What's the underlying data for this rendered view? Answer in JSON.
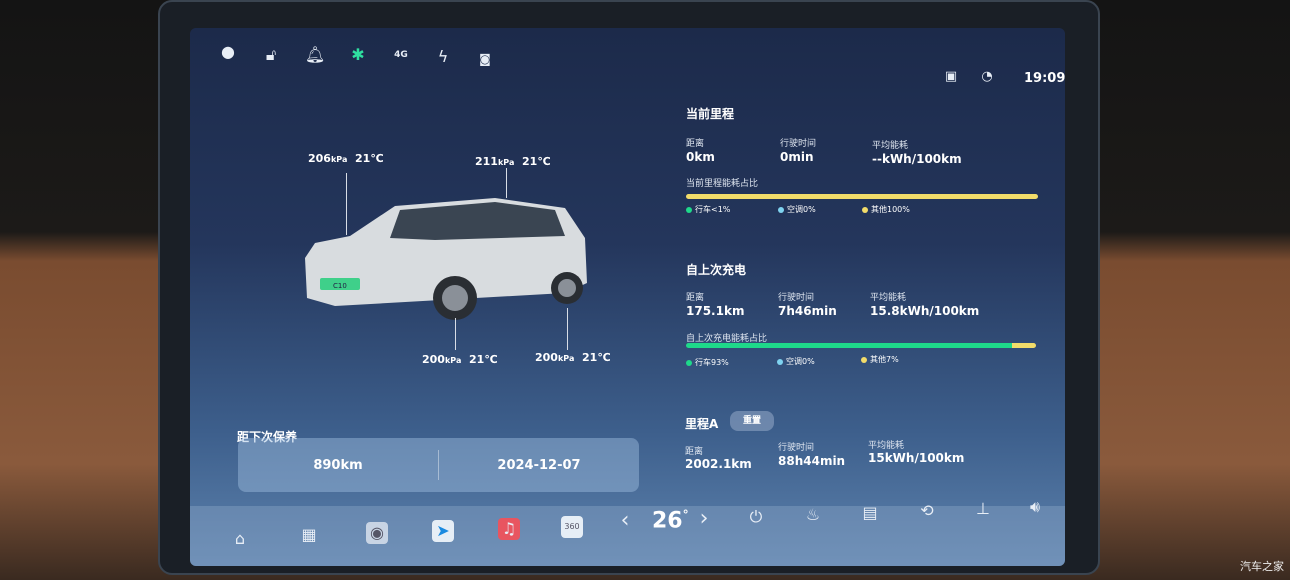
{
  "status_bar": {
    "time": "19:09",
    "icons": [
      "user-avatar-icon",
      "unlock-icon",
      "bell-icon",
      "bluetooth-icon",
      "4g-signal-icon",
      "wireless-charging-icon",
      "camera-record-icon",
      "usb-icon",
      "steering-icon"
    ],
    "signal_label": "4G"
  },
  "tires": [
    {
      "pressure": "206",
      "unit": "kPa",
      "temp": "21℃"
    },
    {
      "pressure": "211",
      "unit": "kPa",
      "temp": "21℃"
    },
    {
      "pressure": "200",
      "unit": "kPa",
      "temp": "21℃"
    },
    {
      "pressure": "200",
      "unit": "kPa",
      "temp": "21℃"
    }
  ],
  "car_badge": "C10",
  "maintenance": {
    "title": "距下次保养",
    "distance": "890km",
    "date": "2024-12-07"
  },
  "current_trip": {
    "title": "当前里程",
    "labels": [
      "距离",
      "行驶时间",
      "平均能耗"
    ],
    "values": [
      "0km",
      "0min",
      "--kWh/100km"
    ],
    "ratio_title": "当前里程能耗占比",
    "legend": [
      "行车<1%",
      "空调0%",
      "其他100%"
    ],
    "shares": {
      "driving": 0,
      "ac": 0,
      "other": 100
    }
  },
  "since_charge": {
    "title": "自上次充电",
    "labels": [
      "距离",
      "行驶时间",
      "平均能耗"
    ],
    "values": [
      "175.1km",
      "7h46min",
      "15.8kWh/100km"
    ],
    "ratio_title": "自上次充电能耗占比",
    "legend": [
      "行车93%",
      "空调0%",
      "其他7%"
    ],
    "shares": {
      "driving": 93,
      "ac": 0,
      "other": 7
    }
  },
  "trip_a": {
    "title": "里程A",
    "reset_label": "重置",
    "labels": [
      "距离",
      "行驶时间",
      "平均能耗"
    ],
    "values": [
      "2002.1km",
      "88h44min",
      "15kWh/100km"
    ]
  },
  "dock": {
    "temperature": "26",
    "degree": "°",
    "left_arrow": "‹",
    "right_arrow": "›"
  },
  "colors": {
    "driving": "#1ed98a",
    "ac": "#7fd3f0",
    "other": "#f2dc6a",
    "bluetooth": "#2fe0a0"
  },
  "watermark": "汽车之家"
}
